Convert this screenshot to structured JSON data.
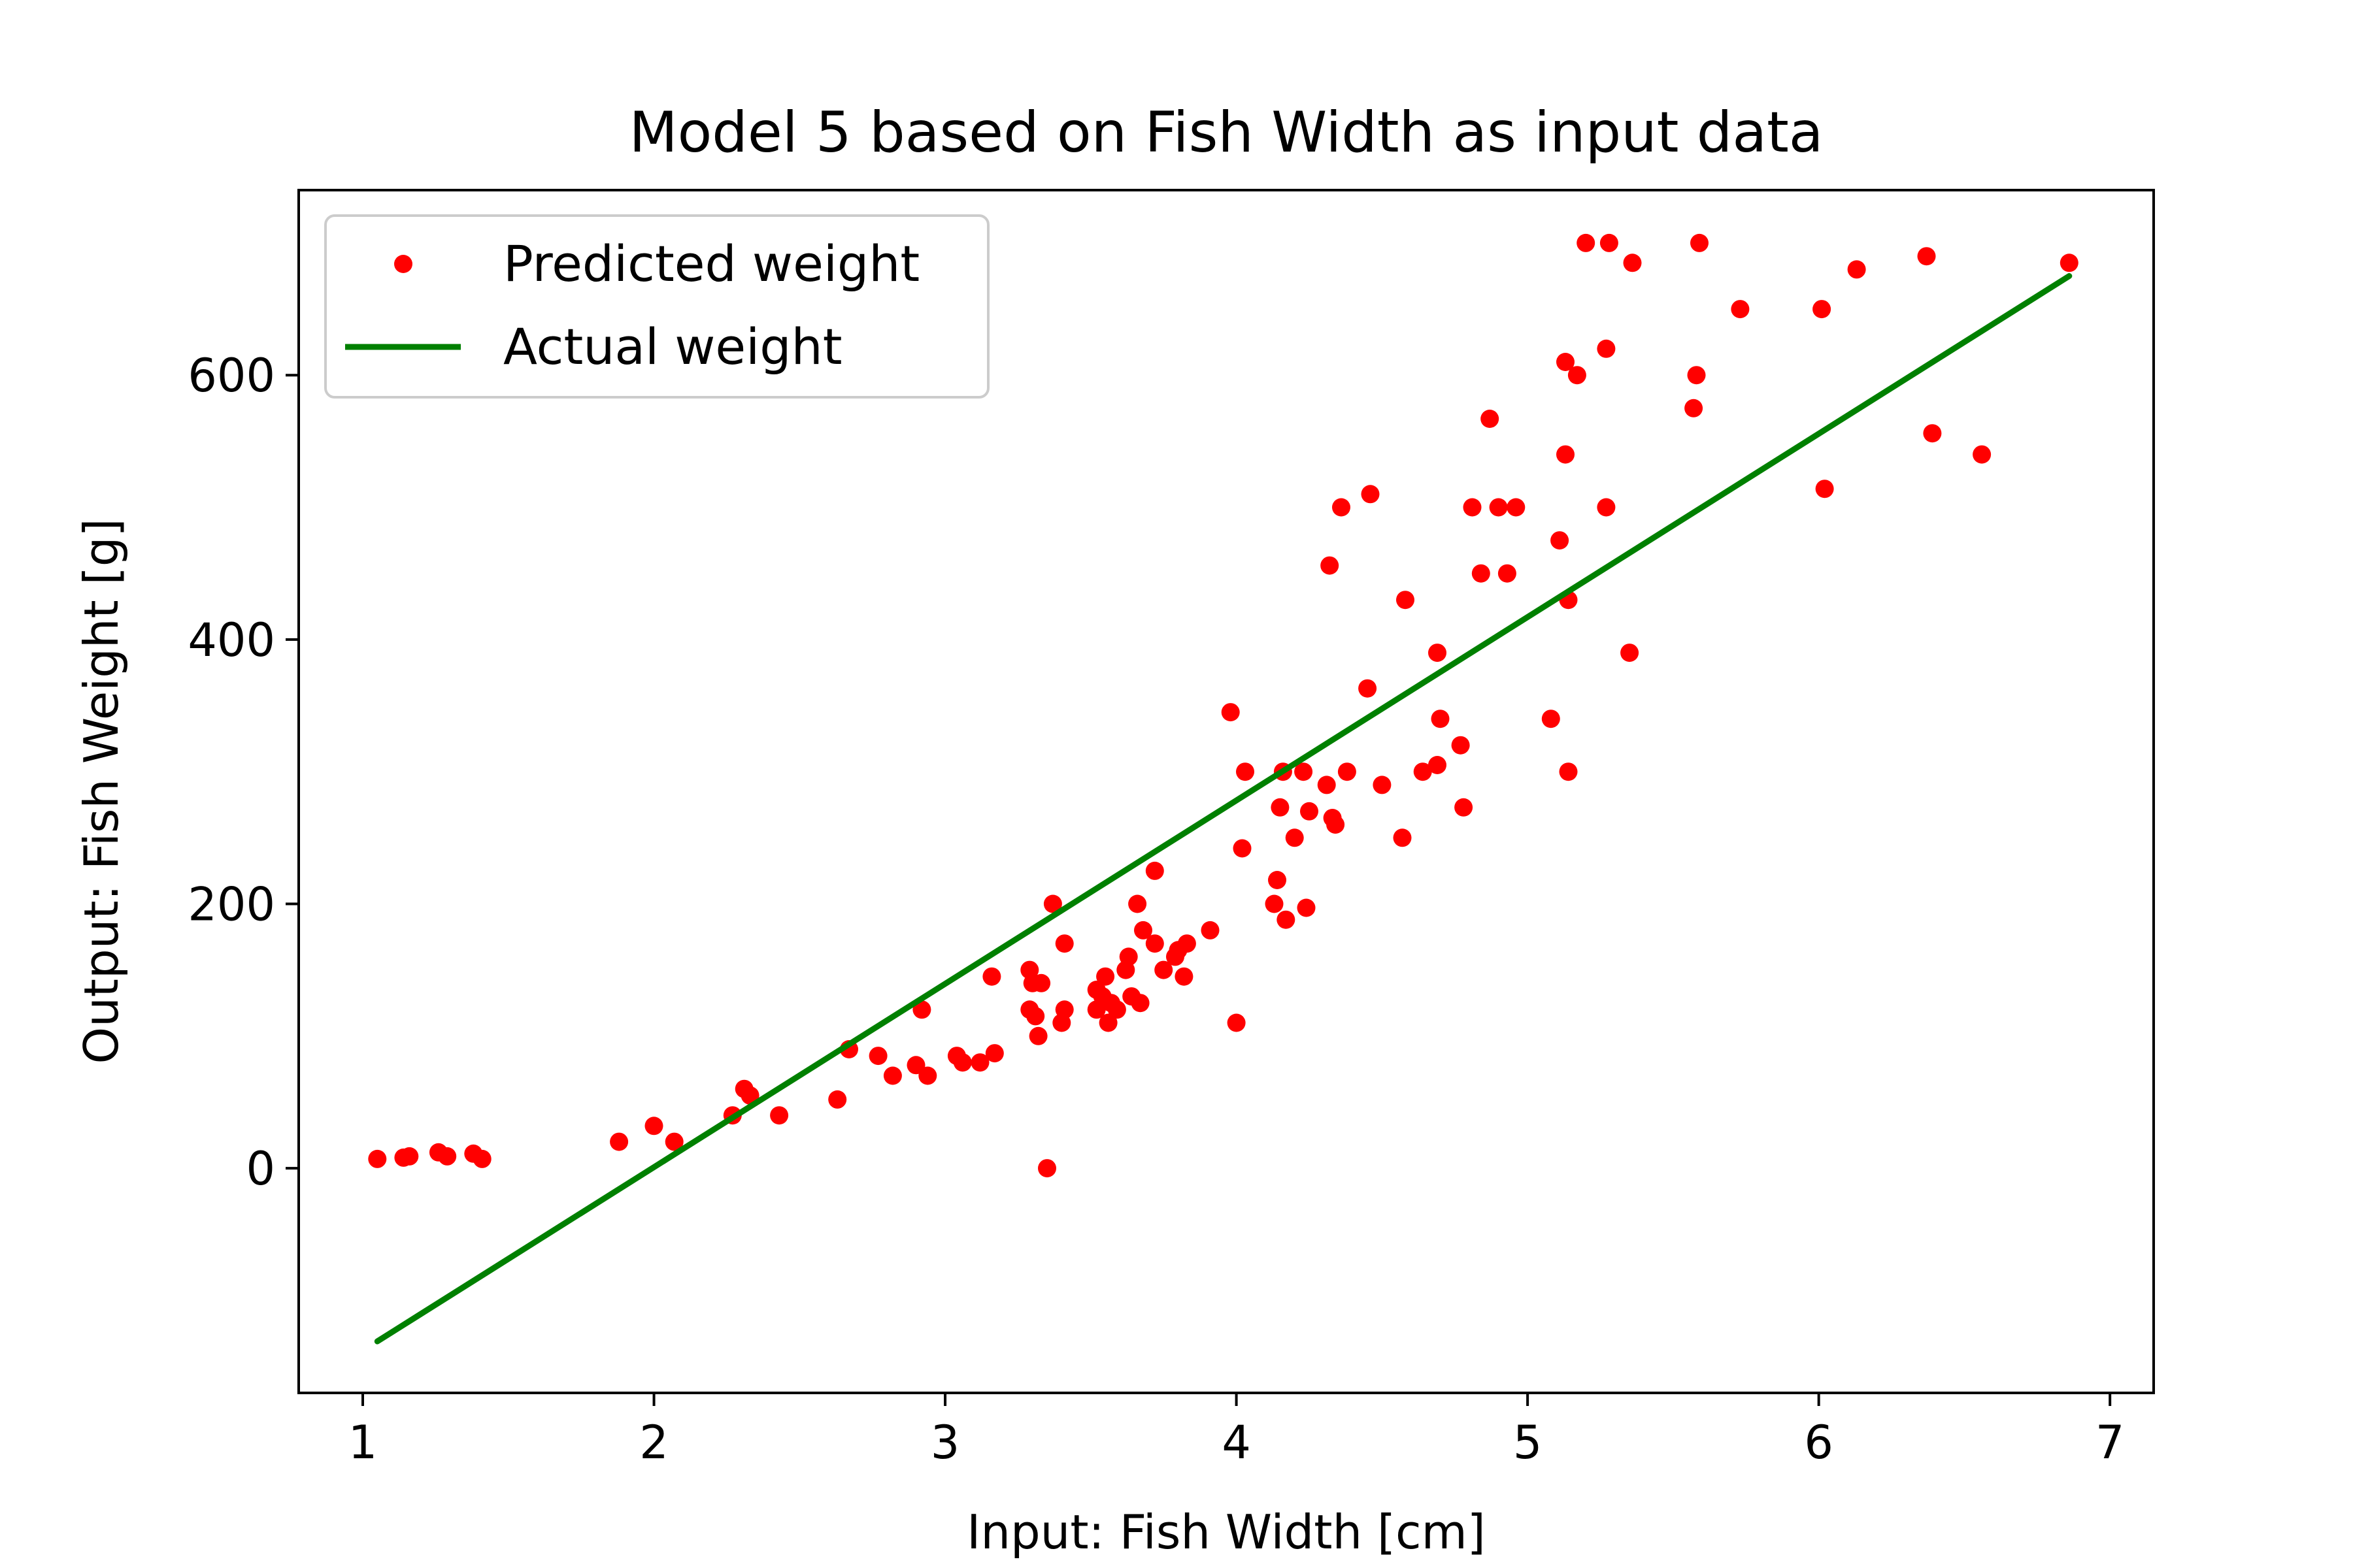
{
  "chart_data": {
    "type": "scatter",
    "title": "Model 5 based on Fish Width as input data",
    "xlabel": "Input: Fish Width [cm]",
    "ylabel": "Output: Fish Weight [g]",
    "xlim": [
      0.78,
      7.15
    ],
    "ylim": [
      -170,
      740
    ],
    "xticks": [
      1,
      2,
      3,
      4,
      5,
      6,
      7
    ],
    "yticks": [
      0,
      200,
      400,
      600
    ],
    "legend_position": "upper-left",
    "grid": false,
    "series": [
      {
        "name": "Predicted weight",
        "type": "scatter",
        "color": "#ff0000",
        "points": [
          [
            1.05,
            7
          ],
          [
            1.14,
            8
          ],
          [
            1.16,
            9
          ],
          [
            1.26,
            12
          ],
          [
            1.29,
            9
          ],
          [
            1.38,
            11
          ],
          [
            1.41,
            7
          ],
          [
            1.88,
            20
          ],
          [
            2.0,
            32
          ],
          [
            2.07,
            20
          ],
          [
            2.27,
            40
          ],
          [
            2.31,
            60
          ],
          [
            2.33,
            55
          ],
          [
            2.43,
            40
          ],
          [
            2.63,
            52
          ],
          [
            2.67,
            90
          ],
          [
            2.77,
            85
          ],
          [
            2.82,
            70
          ],
          [
            2.9,
            78
          ],
          [
            2.92,
            120
          ],
          [
            2.94,
            70
          ],
          [
            3.04,
            85
          ],
          [
            3.06,
            80
          ],
          [
            3.12,
            80
          ],
          [
            3.16,
            145
          ],
          [
            3.17,
            87
          ],
          [
            3.29,
            150
          ],
          [
            3.29,
            120
          ],
          [
            3.3,
            140
          ],
          [
            3.31,
            115
          ],
          [
            3.32,
            100
          ],
          [
            3.33,
            140
          ],
          [
            3.35,
            0
          ],
          [
            3.37,
            200
          ],
          [
            3.4,
            110
          ],
          [
            3.41,
            120
          ],
          [
            3.41,
            170
          ],
          [
            3.52,
            120
          ],
          [
            3.52,
            135
          ],
          [
            3.54,
            130
          ],
          [
            3.55,
            145
          ],
          [
            3.56,
            110
          ],
          [
            3.57,
            125
          ],
          [
            3.59,
            120
          ],
          [
            3.62,
            150
          ],
          [
            3.63,
            160
          ],
          [
            3.64,
            130
          ],
          [
            3.66,
            200
          ],
          [
            3.67,
            125
          ],
          [
            3.68,
            180
          ],
          [
            3.72,
            225
          ],
          [
            3.72,
            170
          ],
          [
            3.75,
            150
          ],
          [
            3.79,
            160
          ],
          [
            3.8,
            165
          ],
          [
            3.82,
            145
          ],
          [
            3.83,
            170
          ],
          [
            3.91,
            180
          ],
          [
            3.98,
            345
          ],
          [
            4.0,
            110
          ],
          [
            4.02,
            242
          ],
          [
            4.03,
            300
          ],
          [
            4.13,
            200
          ],
          [
            4.14,
            218
          ],
          [
            4.15,
            273
          ],
          [
            4.16,
            300
          ],
          [
            4.17,
            188
          ],
          [
            4.2,
            250
          ],
          [
            4.23,
            300
          ],
          [
            4.24,
            197
          ],
          [
            4.25,
            270
          ],
          [
            4.31,
            290
          ],
          [
            4.32,
            456
          ],
          [
            4.33,
            265
          ],
          [
            4.34,
            260
          ],
          [
            4.36,
            500
          ],
          [
            4.38,
            300
          ],
          [
            4.45,
            363
          ],
          [
            4.46,
            510
          ],
          [
            4.5,
            290
          ],
          [
            4.57,
            250
          ],
          [
            4.58,
            430
          ],
          [
            4.64,
            300
          ],
          [
            4.69,
            390
          ],
          [
            4.69,
            305
          ],
          [
            4.7,
            340
          ],
          [
            4.77,
            320
          ],
          [
            4.78,
            273
          ],
          [
            4.81,
            500
          ],
          [
            4.84,
            450
          ],
          [
            4.87,
            567
          ],
          [
            4.9,
            500
          ],
          [
            4.93,
            450
          ],
          [
            4.96,
            500
          ],
          [
            5.08,
            340
          ],
          [
            5.11,
            475
          ],
          [
            5.13,
            540
          ],
          [
            5.13,
            610
          ],
          [
            5.14,
            430
          ],
          [
            5.14,
            300
          ],
          [
            5.17,
            600
          ],
          [
            5.2,
            700
          ],
          [
            5.27,
            500
          ],
          [
            5.27,
            620
          ],
          [
            5.28,
            700
          ],
          [
            5.35,
            390
          ],
          [
            5.36,
            685
          ],
          [
            5.57,
            575
          ],
          [
            5.58,
            600
          ],
          [
            5.59,
            700
          ],
          [
            5.73,
            650
          ],
          [
            6.01,
            650
          ],
          [
            6.02,
            514
          ],
          [
            6.13,
            680
          ],
          [
            6.37,
            690
          ],
          [
            6.39,
            556
          ],
          [
            6.56,
            540
          ],
          [
            6.86,
            685
          ]
        ]
      },
      {
        "name": "Actual weight",
        "type": "line",
        "color": "#008000",
        "points": [
          [
            1.05,
            -131
          ],
          [
            6.86,
            675
          ]
        ]
      }
    ]
  }
}
